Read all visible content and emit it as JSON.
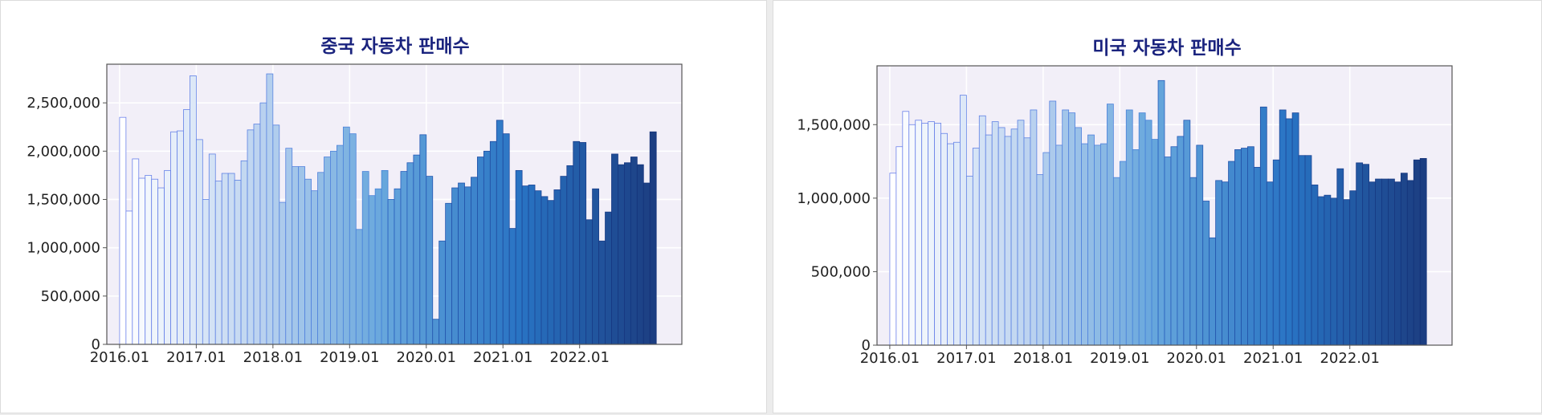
{
  "chart_data": [
    {
      "type": "bar",
      "title": "중국 자동차 판매수",
      "xlabel": "",
      "ylabel": "",
      "ylim": [
        0,
        2900000
      ],
      "grid": true,
      "legend": "none",
      "x_ticks": [
        "2016.01",
        "2017.01",
        "2018.01",
        "2019.01",
        "2020.01",
        "2021.01",
        "2022.01"
      ],
      "y_ticks": [
        "0",
        "500,000",
        "1,000,000",
        "1,500,000",
        "2,000,000",
        "2,500,000"
      ],
      "y_tick_values": [
        0,
        500000,
        1000000,
        1500000,
        2000000,
        2500000
      ],
      "start_period": "2016.01",
      "x": [
        "2016.01",
        "2016.02",
        "2016.03",
        "2016.04",
        "2016.05",
        "2016.06",
        "2016.07",
        "2016.08",
        "2016.09",
        "2016.10",
        "2016.11",
        "2016.12",
        "2017.01",
        "2017.02",
        "2017.03",
        "2017.04",
        "2017.05",
        "2017.06",
        "2017.07",
        "2017.08",
        "2017.09",
        "2017.10",
        "2017.11",
        "2017.12",
        "2018.01",
        "2018.02",
        "2018.03",
        "2018.04",
        "2018.05",
        "2018.06",
        "2018.07",
        "2018.08",
        "2018.09",
        "2018.10",
        "2018.11",
        "2018.12",
        "2019.01",
        "2019.02",
        "2019.03",
        "2019.04",
        "2019.05",
        "2019.06",
        "2019.07",
        "2019.08",
        "2019.09",
        "2019.10",
        "2019.11",
        "2019.12",
        "2020.01",
        "2020.02",
        "2020.03",
        "2020.04",
        "2020.05",
        "2020.06",
        "2020.07",
        "2020.08",
        "2020.09",
        "2020.10",
        "2020.11",
        "2020.12",
        "2021.01",
        "2021.02",
        "2021.03",
        "2021.04",
        "2021.05",
        "2021.06",
        "2021.07",
        "2021.08",
        "2021.09",
        "2021.10",
        "2021.11",
        "2021.12",
        "2022.01",
        "2022.02",
        "2022.03",
        "2022.04",
        "2022.05",
        "2022.06",
        "2022.07",
        "2022.08",
        "2022.09",
        "2022.10",
        "2022.11",
        "2022.12"
      ],
      "values": [
        2350000,
        1380000,
        1920000,
        1720000,
        1750000,
        1710000,
        1620000,
        1800000,
        2200000,
        2210000,
        2430000,
        2780000,
        2120000,
        1500000,
        1970000,
        1690000,
        1770000,
        1770000,
        1700000,
        1900000,
        2220000,
        2280000,
        2500000,
        2800000,
        2270000,
        1470000,
        2030000,
        1840000,
        1840000,
        1710000,
        1590000,
        1780000,
        1940000,
        2000000,
        2060000,
        2250000,
        2180000,
        1190000,
        1790000,
        1540000,
        1610000,
        1800000,
        1500000,
        1610000,
        1790000,
        1880000,
        1960000,
        2170000,
        1740000,
        260000,
        1070000,
        1460000,
        1620000,
        1670000,
        1630000,
        1730000,
        1940000,
        2000000,
        2100000,
        2320000,
        2180000,
        1200000,
        1800000,
        1640000,
        1650000,
        1590000,
        1530000,
        1490000,
        1600000,
        1740000,
        1850000,
        2100000,
        2090000,
        1290000,
        1610000,
        1070000,
        1370000,
        1970000,
        1860000,
        1880000,
        1940000,
        1860000,
        1670000,
        2200000
      ]
    },
    {
      "type": "bar",
      "title": "미국 자동차 판매수",
      "xlabel": "",
      "ylabel": "",
      "ylim": [
        0,
        1900000
      ],
      "grid": true,
      "legend": "none",
      "x_ticks": [
        "2016.01",
        "2017.01",
        "2018.01",
        "2019.01",
        "2020.01",
        "2021.01",
        "2022.01"
      ],
      "y_ticks": [
        "0",
        "500,000",
        "1,000,000",
        "1,500,000"
      ],
      "y_tick_values": [
        0,
        500000,
        1000000,
        1500000
      ],
      "start_period": "2016.01",
      "x": [
        "2016.01",
        "2016.02",
        "2016.03",
        "2016.04",
        "2016.05",
        "2016.06",
        "2016.07",
        "2016.08",
        "2016.09",
        "2016.10",
        "2016.11",
        "2016.12",
        "2017.01",
        "2017.02",
        "2017.03",
        "2017.04",
        "2017.05",
        "2017.06",
        "2017.07",
        "2017.08",
        "2017.09",
        "2017.10",
        "2017.11",
        "2017.12",
        "2018.01",
        "2018.02",
        "2018.03",
        "2018.04",
        "2018.05",
        "2018.06",
        "2018.07",
        "2018.08",
        "2018.09",
        "2018.10",
        "2018.11",
        "2018.12",
        "2019.01",
        "2019.02",
        "2019.03",
        "2019.04",
        "2019.05",
        "2019.06",
        "2019.07",
        "2019.08",
        "2019.09",
        "2019.10",
        "2019.11",
        "2019.12",
        "2020.01",
        "2020.02",
        "2020.03",
        "2020.04",
        "2020.05",
        "2020.06",
        "2020.07",
        "2020.08",
        "2020.09",
        "2020.10",
        "2020.11",
        "2020.12",
        "2021.01",
        "2021.02",
        "2021.03",
        "2021.04",
        "2021.05",
        "2021.06",
        "2021.07",
        "2021.08",
        "2021.09",
        "2021.10",
        "2021.11",
        "2021.12",
        "2022.01",
        "2022.02",
        "2022.03",
        "2022.04",
        "2022.05",
        "2022.06",
        "2022.07",
        "2022.08",
        "2022.09",
        "2022.10",
        "2022.11",
        "2022.12"
      ],
      "values": [
        1170000,
        1350000,
        1590000,
        1500000,
        1530000,
        1510000,
        1520000,
        1510000,
        1440000,
        1370000,
        1380000,
        1700000,
        1150000,
        1340000,
        1560000,
        1430000,
        1520000,
        1480000,
        1420000,
        1470000,
        1530000,
        1410000,
        1600000,
        1160000,
        1310000,
        1660000,
        1360000,
        1600000,
        1580000,
        1480000,
        1370000,
        1430000,
        1360000,
        1370000,
        1640000,
        1140000,
        1250000,
        1600000,
        1330000,
        1580000,
        1530000,
        1400000,
        1800000,
        1280000,
        1350000,
        1420000,
        1530000,
        1140000,
        1360000,
        980000,
        730000,
        1120000,
        1110000,
        1250000,
        1330000,
        1340000,
        1350000,
        1210000,
        1620000,
        1110000,
        1260000,
        1600000,
        1540000,
        1580000,
        1290000,
        1290000,
        1090000,
        1010000,
        1020000,
        1000000,
        1200000,
        990000,
        1050000,
        1240000,
        1230000,
        1110000,
        1130000,
        1130000,
        1130000,
        1110000,
        1170000,
        1120000,
        1260000,
        1270000
      ]
    }
  ]
}
